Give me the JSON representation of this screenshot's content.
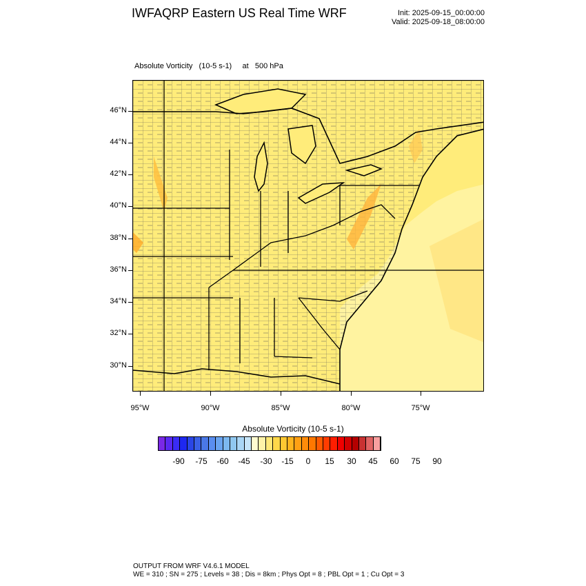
{
  "header": {
    "title": "IWFAQRP Eastern US Real Time WRF",
    "init": "Init: 2025-09-15_00:00:00",
    "valid": "Valid: 2025-09-18_08:00:00"
  },
  "panel": {
    "subtitle": "Absolute Vorticity   (10-5 s-1)     at   500 hPa"
  },
  "axes": {
    "lat_labels": [
      "46°N",
      "44°N",
      "42°N",
      "40°N",
      "38°N",
      "36°N",
      "34°N",
      "32°N",
      "30°N"
    ],
    "lon_labels": [
      "95°W",
      "90°W",
      "85°W",
      "80°W",
      "75°W"
    ]
  },
  "colorbar": {
    "title": "Absolute Vorticity  (10-5 s-1)",
    "labels": [
      "-90",
      "-75",
      "-60",
      "-45",
      "-30",
      "-15",
      "0",
      "15",
      "30",
      "45",
      "60",
      "75",
      "90"
    ],
    "colors": [
      "#7a28e6",
      "#5a28f0",
      "#3a2cf5",
      "#1e28f0",
      "#2a46e6",
      "#3a60e6",
      "#4a78e6",
      "#5a8ef0",
      "#6aa4f0",
      "#7cb8f0",
      "#90c8f0",
      "#aad6f5",
      "#c6e4f8",
      "#fffbd0",
      "#fff3a8",
      "#ffe878",
      "#ffd84a",
      "#ffc832",
      "#ffb41e",
      "#ffa014",
      "#ff8c0a",
      "#ff7800",
      "#ff5a00",
      "#ff3c00",
      "#ff1e00",
      "#f00000",
      "#d20000",
      "#b40000",
      "#c83232",
      "#e06464",
      "#f8a0a0"
    ]
  },
  "footer": {
    "line1": "OUTPUT FROM WRF V4.6.1 MODEL",
    "line2": "WE = 310 ; SN = 275 ; Levels = 38 ; Dis = 8km ; Phys Opt = 8 ; PBL Opt = 1 ; Cu Opt = 3"
  }
}
